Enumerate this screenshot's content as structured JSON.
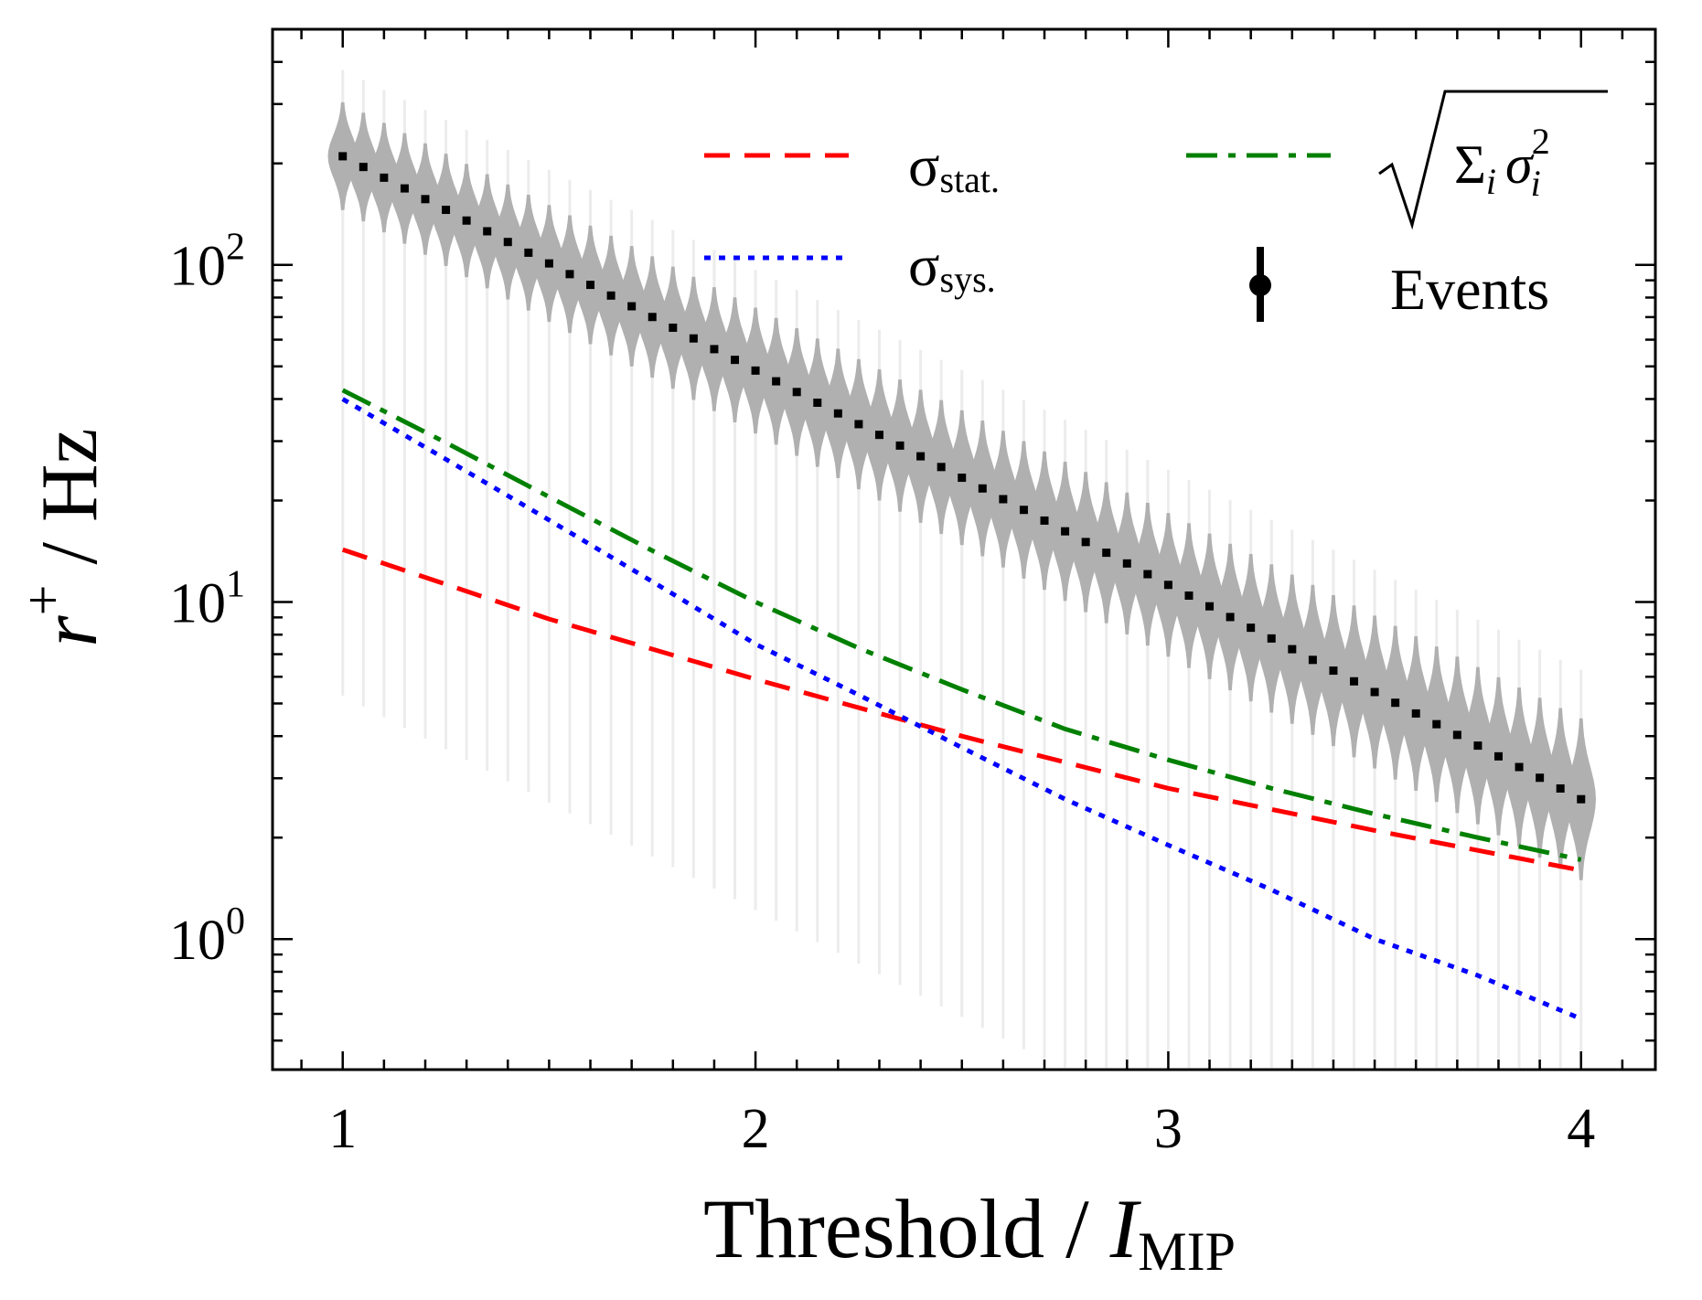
{
  "chart_data": {
    "type": "line",
    "xlabel": {
      "main": "Threshold / ",
      "italic": "I",
      "sub": "MIP"
    },
    "ylabel": {
      "italic": "r",
      "sup": "+",
      "rest": " / Hz"
    },
    "xlim": [
      0.83,
      4.18
    ],
    "ylim": [
      0.41,
      500
    ],
    "yscale": "log",
    "xticks": [
      1,
      2,
      3,
      4
    ],
    "xtick_labels": [
      "1",
      "2",
      "3",
      "4"
    ],
    "yticks": [
      1,
      10,
      100
    ],
    "ytick_labels": [
      {
        "base": "10",
        "exp": "0"
      },
      {
        "base": "10",
        "exp": "1"
      },
      {
        "base": "10",
        "exp": "2"
      }
    ],
    "grid": false,
    "legend_position": "top-right",
    "legend": {
      "stat": {
        "symbol": "σ",
        "sub": "stat."
      },
      "sys": {
        "symbol": "σ",
        "sub": "sys."
      },
      "total": {
        "text": "Σ",
        "sub_i": "i",
        "sigma": "σ",
        "sub_i2": "i",
        "sup": "2"
      },
      "events": "Events"
    },
    "colors": {
      "stat": "#ff0000",
      "sys": "#0000ff",
      "total": "#008000",
      "events": "#000000",
      "violin": "#b0b0b0"
    },
    "series": [
      {
        "key": "stat",
        "style": "dashed",
        "x": [
          1.0,
          1.5,
          2.0,
          2.5,
          3.0,
          3.5,
          4.0
        ],
        "values": [
          14.3,
          8.9,
          5.9,
          4.0,
          2.8,
          2.1,
          1.6
        ]
      },
      {
        "key": "sys",
        "style": "dotted",
        "x": [
          1.0,
          1.25,
          1.5,
          1.75,
          2.0,
          2.25,
          2.5,
          2.75,
          3.0,
          3.25,
          3.5,
          3.75,
          4.0
        ],
        "values": [
          40.0,
          26.5,
          17.5,
          11.5,
          7.5,
          5.3,
          3.7,
          2.6,
          1.9,
          1.4,
          1.0,
          0.78,
          0.58
        ]
      },
      {
        "key": "total",
        "style": "dashdot",
        "x": [
          1.0,
          1.25,
          1.5,
          1.75,
          2.0,
          2.25,
          2.5,
          2.75,
          3.0,
          3.25,
          3.5,
          3.75,
          4.0
        ],
        "values": [
          42.5,
          29.7,
          20.5,
          14.2,
          10.0,
          7.3,
          5.5,
          4.2,
          3.4,
          2.8,
          2.35,
          2.0,
          1.72
        ]
      },
      {
        "key": "events",
        "style": "points",
        "x_start": 1.0,
        "x_end": 4.0,
        "n_points": 61,
        "value_start": 210,
        "value_end": 2.6,
        "violin_halfwidth_log10": [
          0.16,
          0.24
        ],
        "violin_tail_low_log10": -1.6
      }
    ]
  }
}
